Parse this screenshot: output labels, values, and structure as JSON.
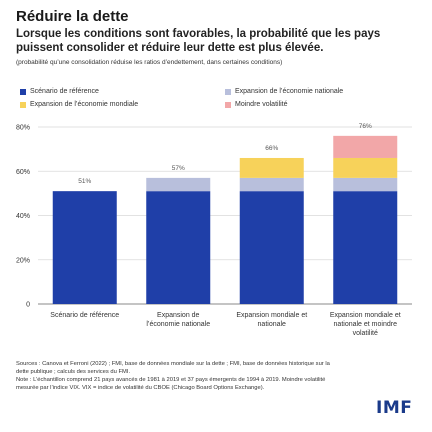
{
  "header": {
    "title": "Réduire la dette",
    "subtitle": "Lorsque les conditions sont favorables, la probabilité que les pays puissent consolider et réduire leur dette est plus élevée.",
    "note": "(probabilité qu’une consolidation réduise les ratios d’endettement, dans certaines conditions)"
  },
  "legend": [
    {
      "label": "Scénario de référence",
      "color": "#1f3fa8"
    },
    {
      "label": "Expansion de l’économie nationale",
      "color": "#b8bfdc"
    },
    {
      "label": "Expansion de l’économie mondiale",
      "color": "#f7d25a"
    },
    {
      "label": "Moindre volatilité",
      "color": "#f2a7a8"
    }
  ],
  "chart_data": {
    "type": "bar",
    "stacked": true,
    "categories": [
      [
        "Scénario de référence"
      ],
      [
        "Expansion de",
        "l’économie nationale"
      ],
      [
        "Expansion mondiale et",
        "nationale"
      ],
      [
        "Expansion mondiale et",
        "nationale et moindre",
        "volatilité"
      ]
    ],
    "series": [
      {
        "name": "Scénario de référence",
        "color": "#1f3fa8",
        "values": [
          51,
          51,
          51,
          51
        ]
      },
      {
        "name": "Expansion de l’économie nationale",
        "color": "#b8bfdc",
        "values": [
          0,
          6,
          6,
          6
        ]
      },
      {
        "name": "Expansion de l’économie mondiale",
        "color": "#f7d25a",
        "values": [
          0,
          0,
          9,
          9
        ]
      },
      {
        "name": "Moindre volatilité",
        "color": "#f2a7a8",
        "values": [
          0,
          0,
          0,
          10
        ]
      }
    ],
    "totals_labels": [
      "51%",
      "57%",
      "66%",
      "76%"
    ],
    "y_ticks": [
      0,
      20,
      40,
      60,
      80
    ],
    "y_tick_labels": [
      "0",
      "20%",
      "40%",
      "60%",
      "80%"
    ],
    "ylim": [
      0,
      80
    ],
    "grid": true
  },
  "footer": {
    "sources": "Sources : Canova et Ferroni (2022) ; FMI, base de données mondiale sur la dette ; FMI, base de données historique sur la dette publique ; calculs des services du FMI.",
    "note": "Note : L’échantillon comprend 21 pays avancés de 1981 à 2019 et 37 pays émergents de 1994 à 2019. Moindre volatilité mesurée par l’indice VIX. VIX = indice de volatilité du CBOE (Chicago Board Options Exchange)."
  },
  "logo": "IMF"
}
